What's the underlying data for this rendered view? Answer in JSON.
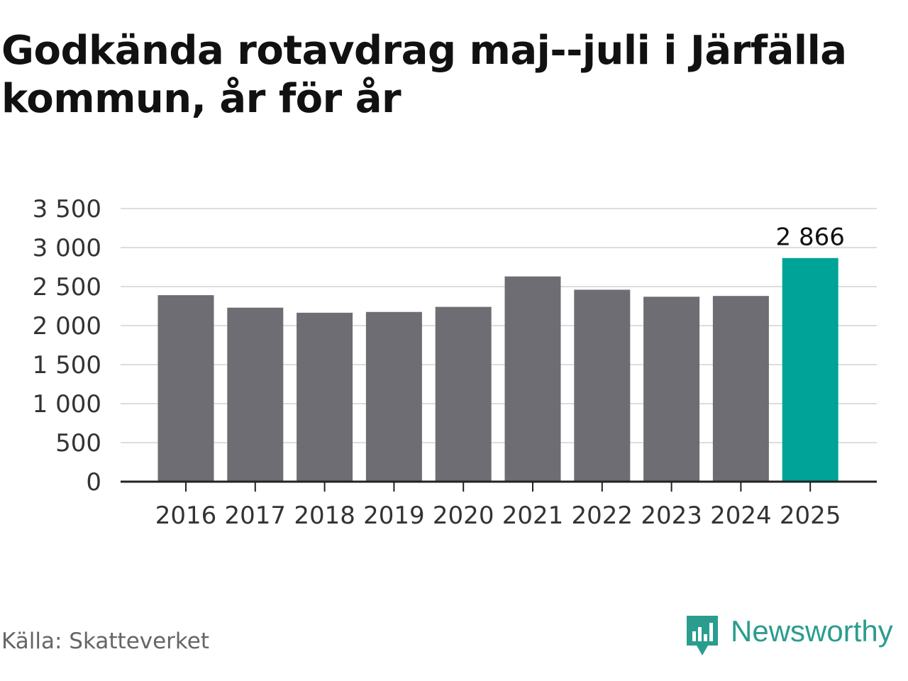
{
  "title": "Godkända rotavdrag maj--juli i Järfälla kommun, år för år",
  "source": "Källa: Skatteverket",
  "brand": {
    "name": "Newsworthy",
    "icon": "newsworthy-logo-icon",
    "color": "#2a9d8f"
  },
  "chart_data": {
    "type": "bar",
    "title": "Godkända rotavdrag maj--juli i Järfälla kommun, år för år",
    "xlabel": "",
    "ylabel": "",
    "categories": [
      "2016",
      "2017",
      "2018",
      "2019",
      "2020",
      "2021",
      "2022",
      "2023",
      "2024",
      "2025"
    ],
    "values": [
      2390,
      2230,
      2165,
      2175,
      2240,
      2630,
      2460,
      2370,
      2380,
      2866
    ],
    "highlight_index": 9,
    "data_labels": [
      {
        "index": 9,
        "text": "2 866"
      }
    ],
    "ylim": [
      0,
      3500
    ],
    "yticks": [
      0,
      500,
      1000,
      1500,
      2000,
      2500,
      3000,
      3500
    ],
    "ytick_labels": [
      "0",
      "500",
      "1 000",
      "1 500",
      "2 000",
      "2 500",
      "3 000",
      "3 500"
    ],
    "grid": true,
    "colors": {
      "bar": "#6e6d73",
      "highlight": "#00a398",
      "grid": "#dddddd",
      "axis": "#222222"
    }
  }
}
